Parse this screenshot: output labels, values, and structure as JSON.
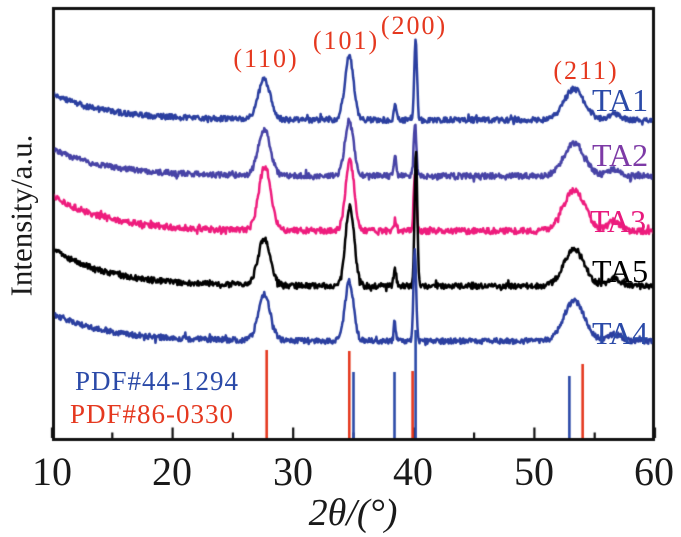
{
  "chart_data": {
    "type": "line",
    "description": "XRD patterns (intensity vs diffraction angle) of five samples with two PDF reference stick patterns",
    "xlabel": "2θ/(°)",
    "ylabel": "Intensity/a.u.",
    "xlim": [
      10,
      60
    ],
    "x_ticks": [
      10,
      20,
      30,
      40,
      50,
      60
    ],
    "x_minor_ticks": [
      15,
      25,
      35,
      45,
      55
    ],
    "grid": "off",
    "legend_position": "labels at right end of each curve",
    "annotation_color": "#e5381f",
    "peak_annotations": [
      {
        "label": "(110)",
        "two_theta": 27.7
      },
      {
        "label": "(101)",
        "two_theta": 34.7
      },
      {
        "label": "(200)",
        "two_theta": 40.1
      },
      {
        "label": "(211)",
        "two_theta": 53.4
      }
    ],
    "series": [
      {
        "name": "TA1",
        "color": "#2b3fa0",
        "label_color": "#2b4aa8",
        "baseline_au": 120,
        "low_angle_bg_au": 26,
        "noise_au": 2.8,
        "seed": 11,
        "peaks": [
          {
            "c": 27.6,
            "w": 0.5,
            "a": 40
          },
          {
            "c": 34.65,
            "w": 0.36,
            "a": 64
          },
          {
            "c": 38.45,
            "w": 0.1,
            "a": 14
          },
          {
            "c": 40.15,
            "w": 0.11,
            "a": 80
          },
          {
            "c": 53.3,
            "w": 0.85,
            "a": 31
          },
          {
            "c": 56.6,
            "w": 0.5,
            "a": 6
          }
        ]
      },
      {
        "name": "TA2",
        "color": "#4743a6",
        "label_color": "#7d3aa6",
        "baseline_au": 176,
        "low_angle_bg_au": 27,
        "noise_au": 2.8,
        "seed": 22,
        "peaks": [
          {
            "c": 27.6,
            "w": 0.5,
            "a": 46
          },
          {
            "c": 34.65,
            "w": 0.36,
            "a": 56
          },
          {
            "c": 38.45,
            "w": 0.1,
            "a": 22
          },
          {
            "c": 40.1,
            "w": 0.11,
            "a": 52
          },
          {
            "c": 53.3,
            "w": 0.85,
            "a": 33
          },
          {
            "c": 56.6,
            "w": 0.5,
            "a": 7
          }
        ]
      },
      {
        "name": "TA3",
        "color": "#ee1c7d",
        "label_color": "#e81a7d",
        "baseline_au": 231,
        "low_angle_bg_au": 36,
        "noise_au": 3.0,
        "seed": 33,
        "peaks": [
          {
            "c": 27.65,
            "w": 0.5,
            "a": 64
          },
          {
            "c": 34.7,
            "w": 0.36,
            "a": 70
          },
          {
            "c": 38.45,
            "w": 0.1,
            "a": 12
          },
          {
            "c": 40.1,
            "w": 0.11,
            "a": 58
          },
          {
            "c": 53.3,
            "w": 0.9,
            "a": 41
          },
          {
            "c": 56.6,
            "w": 0.5,
            "a": 10
          }
        ]
      },
      {
        "name": "TA5",
        "color": "#000000",
        "label_color": "#000000",
        "baseline_au": 286,
        "low_angle_bg_au": 38,
        "noise_au": 2.8,
        "seed": 55,
        "peaks": [
          {
            "c": 27.6,
            "w": 0.5,
            "a": 47
          },
          {
            "c": 34.7,
            "w": 0.36,
            "a": 79
          },
          {
            "c": 38.45,
            "w": 0.1,
            "a": 16
          },
          {
            "c": 40.18,
            "w": 0.11,
            "a": 134
          },
          {
            "c": 53.3,
            "w": 0.85,
            "a": 37
          },
          {
            "c": 56.6,
            "w": 0.5,
            "a": 8
          }
        ]
      },
      {
        "name": "TA4",
        "color": "#2b3fa0",
        "label_color": "#2b4aa8",
        "baseline_au": 341,
        "low_angle_bg_au": 28,
        "noise_au": 2.8,
        "seed": 44,
        "peaks": [
          {
            "c": 27.6,
            "w": 0.5,
            "a": 46
          },
          {
            "c": 34.65,
            "w": 0.36,
            "a": 59
          },
          {
            "c": 38.42,
            "w": 0.1,
            "a": 17
          },
          {
            "c": 40.08,
            "w": 0.11,
            "a": 94
          },
          {
            "c": 53.3,
            "w": 0.85,
            "a": 40
          },
          {
            "c": 56.6,
            "w": 0.5,
            "a": 7
          }
        ]
      }
    ],
    "reference_patterns": [
      {
        "name": "PDF#44-1294",
        "color": "#2b4aa8",
        "sticks": [
          {
            "two_theta": 35.0,
            "height_au": 66
          },
          {
            "two_theta": 38.4,
            "height_au": 66
          },
          {
            "two_theta": 40.15,
            "height_au": 108
          },
          {
            "two_theta": 52.9,
            "height_au": 62
          }
        ]
      },
      {
        "name": "PDF#86-0330",
        "color": "#e5381f",
        "sticks": [
          {
            "two_theta": 27.8,
            "height_au": 88
          },
          {
            "two_theta": 34.65,
            "height_au": 87
          },
          {
            "two_theta": 39.9,
            "height_au": 67
          },
          {
            "two_theta": 54.0,
            "height_au": 74
          }
        ]
      }
    ],
    "axis_color": "#111111"
  }
}
